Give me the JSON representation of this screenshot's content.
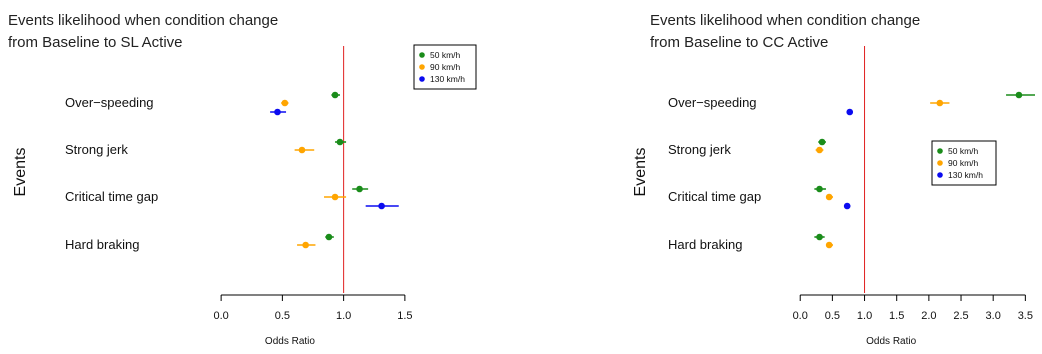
{
  "chart_data": [
    {
      "type": "scatter",
      "title_lines": [
        "Events likelihood when condition change",
        "from Baseline to SL Active"
      ],
      "xlabel": "Odds Ratio",
      "ylabel": "Events",
      "xlim": [
        -0.05,
        1.55
      ],
      "xticks": [
        0.0,
        0.5,
        1.0,
        1.5
      ],
      "xtick_labels": [
        "0.0",
        "0.5",
        "1.0",
        "1.5"
      ],
      "reference_line": 1.0,
      "reference_color": "#e02020",
      "legend_position": "top-right",
      "categories": [
        "Over−speeding",
        "Strong jerk",
        "Critical time gap",
        "Hard braking"
      ],
      "series": [
        {
          "name": "50 km/h",
          "color": "#1a8c1a",
          "offset": -8,
          "values": [
            0.93,
            0.97,
            1.13,
            0.88
          ],
          "ci": [
            [
              0.9,
              0.97
            ],
            [
              0.93,
              1.02
            ],
            [
              1.07,
              1.2
            ],
            [
              0.85,
              0.92
            ]
          ]
        },
        {
          "name": "90 km/h",
          "color": "#ffa500",
          "offset": 0,
          "values": [
            0.52,
            0.66,
            0.93,
            0.69
          ],
          "ci": [
            [
              0.49,
              0.55
            ],
            [
              0.6,
              0.76
            ],
            [
              0.84,
              1.02
            ],
            [
              0.62,
              0.77
            ]
          ]
        },
        {
          "name": "130 km/h",
          "color": "#0b0bf0",
          "offset": 9,
          "values": [
            0.46,
            null,
            1.31,
            null
          ],
          "ci": [
            [
              0.4,
              0.53
            ],
            null,
            [
              1.18,
              1.45
            ],
            null
          ]
        }
      ]
    },
    {
      "type": "scatter",
      "title_lines": [
        "Events likelihood when condition change",
        "from Baseline to CC Active"
      ],
      "xlabel": "Odds Ratio",
      "ylabel": "Events",
      "xlim": [
        -0.05,
        3.65
      ],
      "xticks": [
        0.0,
        0.5,
        1.0,
        1.5,
        2.0,
        2.5,
        3.0,
        3.5
      ],
      "xtick_labels": [
        "0.0",
        "0.5",
        "1.0",
        "1.5",
        "2.0",
        "2.5",
        "3.0",
        "3.5"
      ],
      "reference_line": 1.0,
      "reference_color": "#e02020",
      "legend_position": "center-right",
      "categories": [
        "Over−speeding",
        "Strong jerk",
        "Critical time gap",
        "Hard braking"
      ],
      "series": [
        {
          "name": "50 km/h",
          "color": "#1a8c1a",
          "offset": -8,
          "values": [
            3.4,
            0.34,
            0.3,
            0.3
          ],
          "ci": [
            [
              3.2,
              3.65
            ],
            [
              0.28,
              0.4
            ],
            [
              0.22,
              0.4
            ],
            [
              0.22,
              0.38
            ]
          ]
        },
        {
          "name": "90 km/h",
          "color": "#ffa500",
          "offset": 0,
          "values": [
            2.17,
            0.3,
            0.45,
            0.45
          ],
          "ci": [
            [
              2.02,
              2.32
            ],
            [
              0.24,
              0.36
            ],
            [
              0.4,
              0.51
            ],
            [
              0.4,
              0.51
            ]
          ]
        },
        {
          "name": "130 km/h",
          "color": "#0b0bf0",
          "offset": 9,
          "values": [
            0.77,
            null,
            0.73,
            null
          ],
          "ci": [
            [
              0.72,
              0.82
            ],
            null,
            [
              0.68,
              0.78
            ],
            null
          ]
        }
      ]
    }
  ]
}
